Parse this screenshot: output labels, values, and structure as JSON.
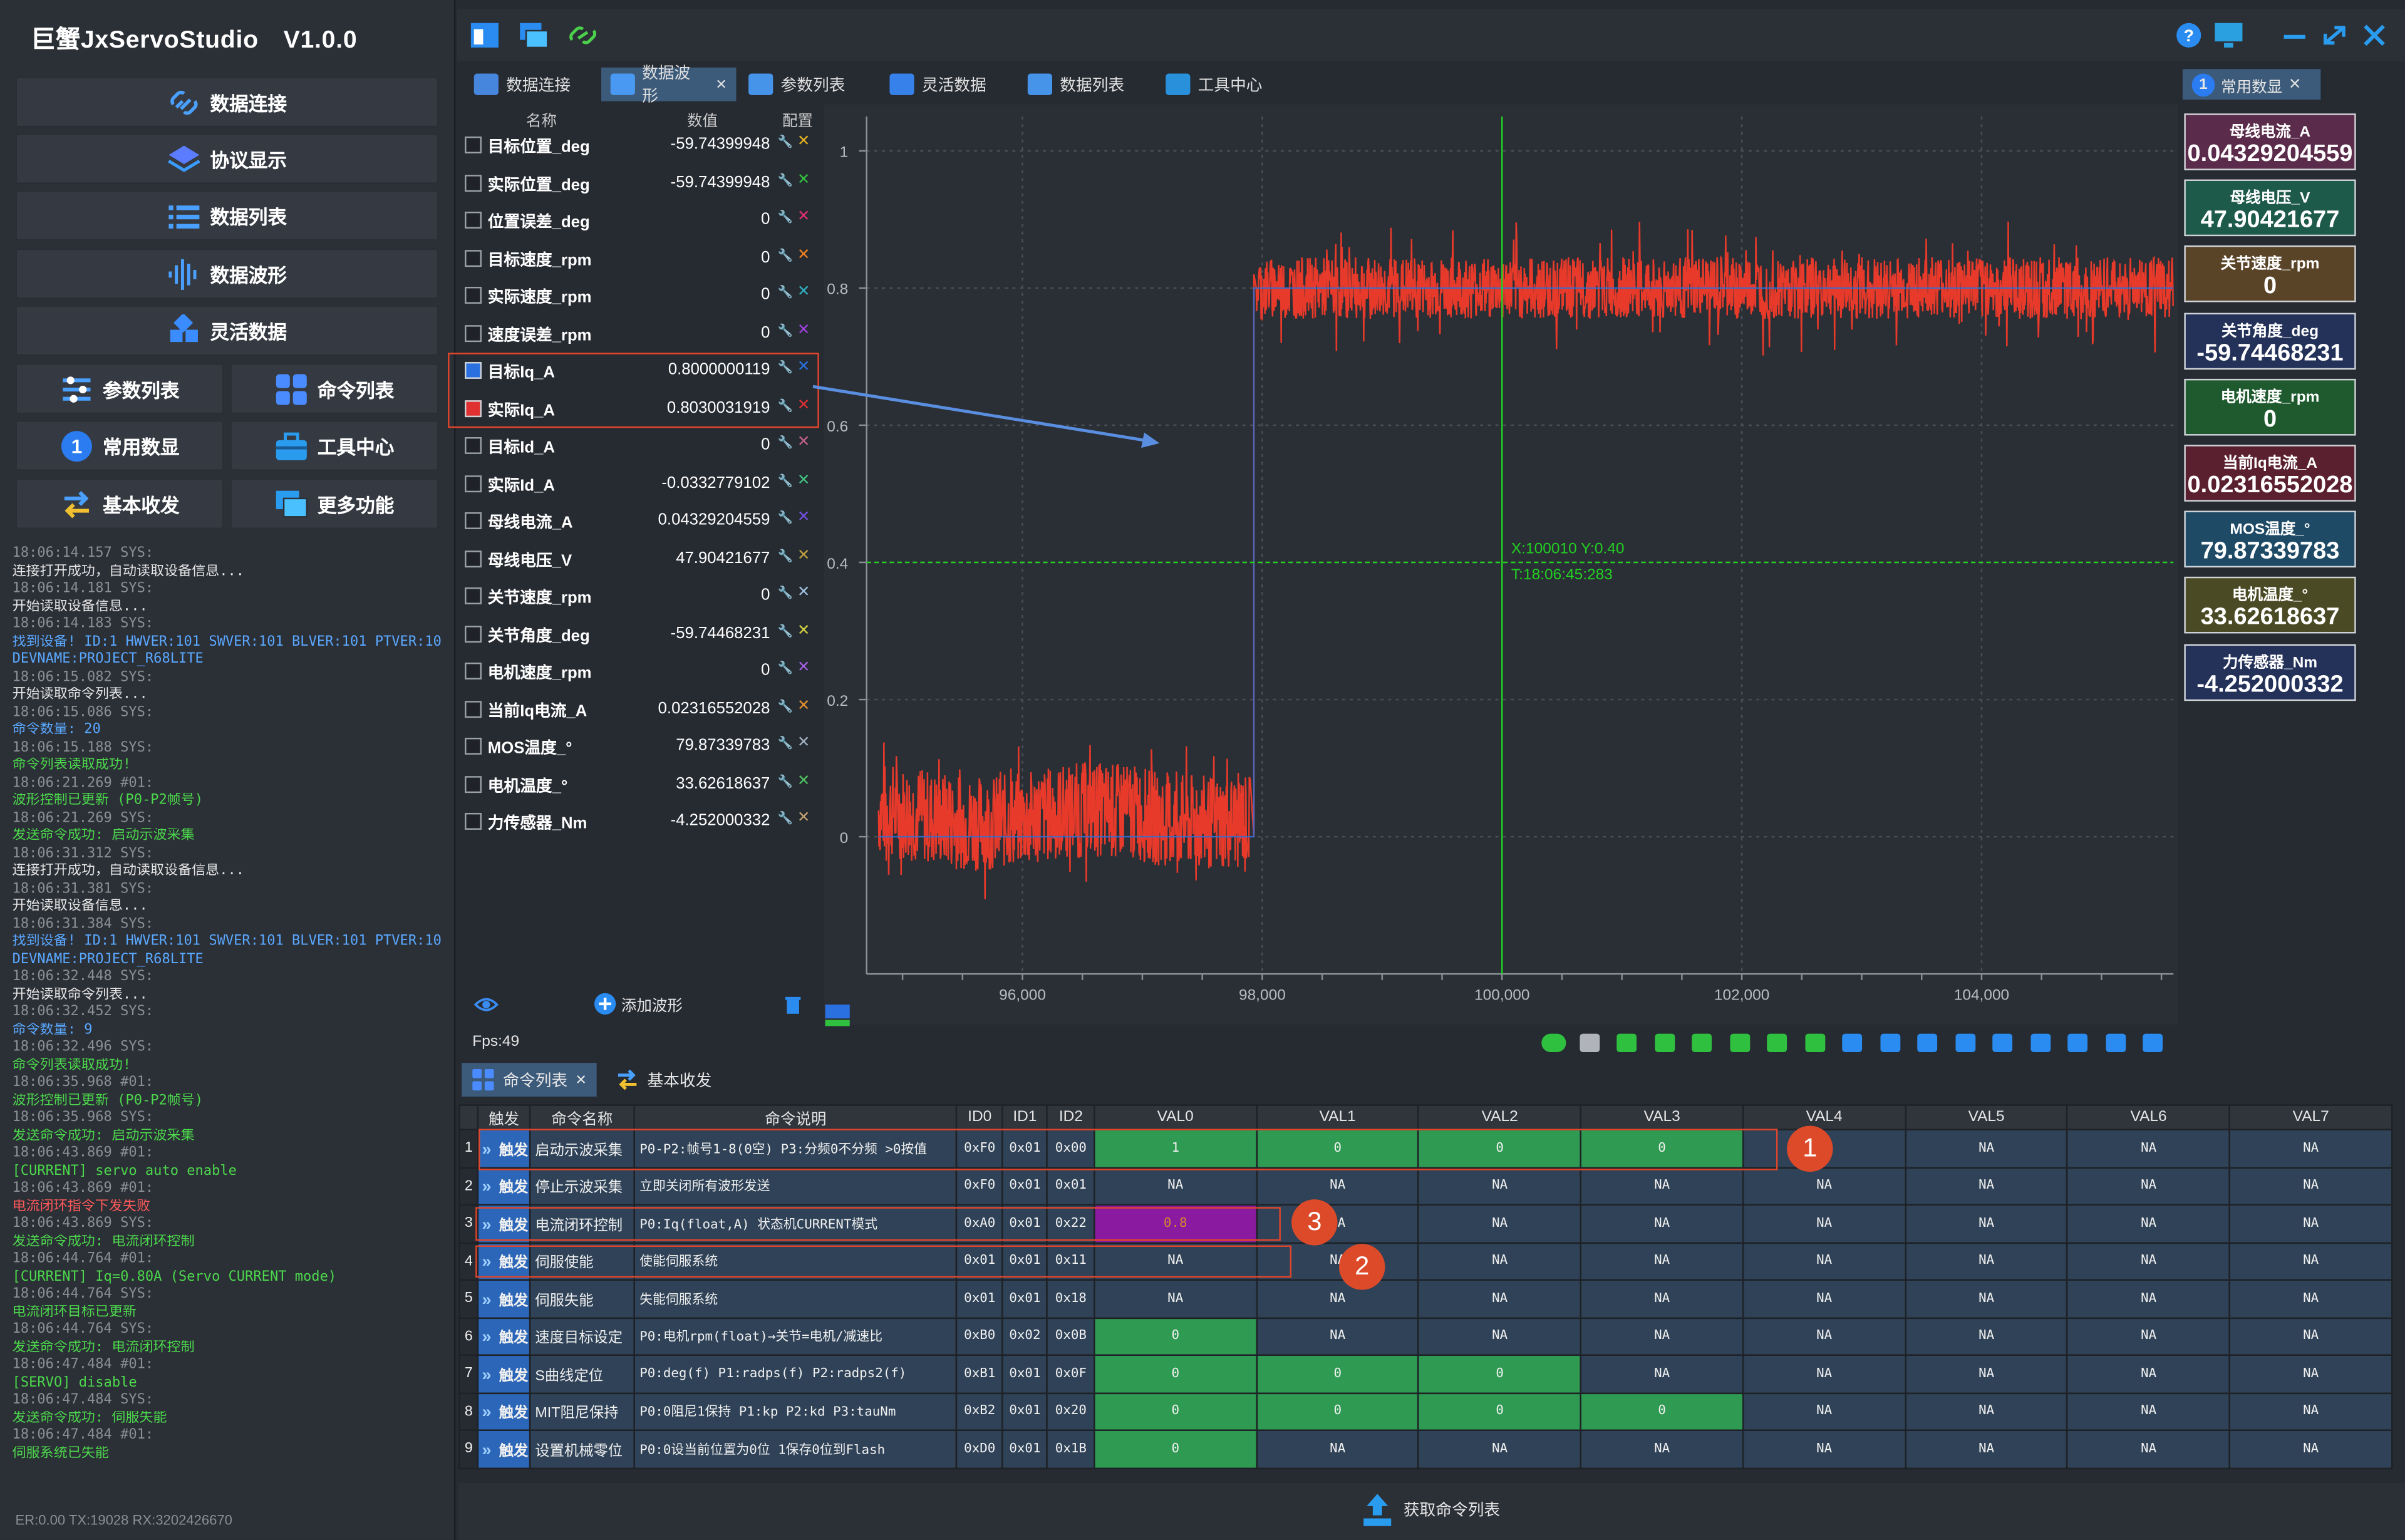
{
  "app": {
    "title": "巨蟹JxServoStudio　V1.0.0"
  },
  "nav": {
    "data_connect": "数据连接",
    "protocol_display": "协议显示",
    "data_list": "数据列表",
    "data_waveform": "数据波形",
    "flex_data": "灵活数据",
    "param_list": "参数列表",
    "cmd_list": "命令列表",
    "common_data": "常用数显",
    "tool_center": "工具中心",
    "basic_rxtx": "基本收发",
    "more_functions": "更多功能"
  },
  "log": [
    {
      "t": "18:06:14.157 SYS:",
      "c": "#8a8f96"
    },
    {
      "t": "连接打开成功，自动读取设备信息...",
      "c": "#e6e6e6"
    },
    {
      "t": "18:06:14.181 SYS:",
      "c": "#8a8f96"
    },
    {
      "t": "开始读取设备信息...",
      "c": "#e6e6e6"
    },
    {
      "t": "18:06:14.183 SYS:",
      "c": "#8a8f96"
    },
    {
      "t": "找到设备! ID:1 HWVER:101 SWVER:101 BLVER:101 PTVER:101",
      "c": "#5aa8ff"
    },
    {
      "t": "DEVNAME:PROJECT_R68LITE",
      "c": "#5aa8ff"
    },
    {
      "t": "18:06:15.082 SYS:",
      "c": "#8a8f96"
    },
    {
      "t": "开始读取命令列表...",
      "c": "#e6e6e6"
    },
    {
      "t": "18:06:15.086 SYS:",
      "c": "#8a8f96"
    },
    {
      "t": "命令数量: 20",
      "c": "#5aa8ff"
    },
    {
      "t": "18:06:15.188 SYS:",
      "c": "#8a8f96"
    },
    {
      "t": "命令列表读取成功!",
      "c": "#4cd84c"
    },
    {
      "t": "18:06:21.269 #01:",
      "c": "#8a8f96"
    },
    {
      "t": "波形控制已更新 (P0-P2帧号)",
      "c": "#4cd84c"
    },
    {
      "t": "18:06:21.269 SYS:",
      "c": "#8a8f96"
    },
    {
      "t": "发送命令成功: 启动示波采集",
      "c": "#4cd84c"
    },
    {
      "t": "18:06:31.312 SYS:",
      "c": "#8a8f96"
    },
    {
      "t": "连接打开成功，自动读取设备信息...",
      "c": "#e6e6e6"
    },
    {
      "t": "18:06:31.381 SYS:",
      "c": "#8a8f96"
    },
    {
      "t": "开始读取设备信息...",
      "c": "#e6e6e6"
    },
    {
      "t": "18:06:31.384 SYS:",
      "c": "#8a8f96"
    },
    {
      "t": "找到设备! ID:1 HWVER:101 SWVER:101 BLVER:101 PTVER:101",
      "c": "#5aa8ff"
    },
    {
      "t": "DEVNAME:PROJECT_R68LITE",
      "c": "#5aa8ff"
    },
    {
      "t": "18:06:32.448 SYS:",
      "c": "#8a8f96"
    },
    {
      "t": "开始读取命令列表...",
      "c": "#e6e6e6"
    },
    {
      "t": "18:06:32.452 SYS:",
      "c": "#8a8f96"
    },
    {
      "t": "命令数量: 9",
      "c": "#5aa8ff"
    },
    {
      "t": "18:06:32.496 SYS:",
      "c": "#8a8f96"
    },
    {
      "t": "命令列表读取成功!",
      "c": "#4cd84c"
    },
    {
      "t": "18:06:35.968 #01:",
      "c": "#8a8f96"
    },
    {
      "t": "波形控制已更新 (P0-P2帧号)",
      "c": "#4cd84c"
    },
    {
      "t": "18:06:35.968 SYS:",
      "c": "#8a8f96"
    },
    {
      "t": "发送命令成功: 启动示波采集",
      "c": "#4cd84c"
    },
    {
      "t": "18:06:43.869 #01:",
      "c": "#8a8f96"
    },
    {
      "t": "[CURRENT] servo auto enable",
      "c": "#4cd84c"
    },
    {
      "t": "18:06:43.869 #01:",
      "c": "#8a8f96"
    },
    {
      "t": "电流闭环指令下发失败",
      "c": "#ff5a5a"
    },
    {
      "t": "18:06:43.869 SYS:",
      "c": "#8a8f96"
    },
    {
      "t": "发送命令成功: 电流闭环控制",
      "c": "#4cd84c"
    },
    {
      "t": "18:06:44.764 #01:",
      "c": "#8a8f96"
    },
    {
      "t": "[CURRENT] Iq=0.80A (Servo CURRENT mode)",
      "c": "#4cd84c"
    },
    {
      "t": "18:06:44.764 SYS:",
      "c": "#8a8f96"
    },
    {
      "t": "电流闭环目标已更新",
      "c": "#4cd84c"
    },
    {
      "t": "18:06:44.764 SYS:",
      "c": "#8a8f96"
    },
    {
      "t": "发送命令成功: 电流闭环控制",
      "c": "#4cd84c"
    },
    {
      "t": "18:06:47.484 #01:",
      "c": "#8a8f96"
    },
    {
      "t": "[SERVO] disable",
      "c": "#4cd84c"
    },
    {
      "t": "18:06:47.484 SYS:",
      "c": "#8a8f96"
    },
    {
      "t": "发送命令成功: 伺服失能",
      "c": "#4cd84c"
    },
    {
      "t": "18:06:47.484 #01:",
      "c": "#8a8f96"
    },
    {
      "t": "伺服系统已失能",
      "c": "#4cd84c"
    }
  ],
  "status": "ER:0.00 TX:19028 RX:3202426670",
  "tabs": [
    "数据连接",
    "数据波形",
    "参数列表",
    "灵活数据",
    "数据列表",
    "工具中心"
  ],
  "siglist": {
    "headers": {
      "name": "名称",
      "value": "数值",
      "config": "配置"
    },
    "rows": [
      {
        "name": "目标位置_deg",
        "value": "-59.74399948",
        "checked": false,
        "color": "#e0b020"
      },
      {
        "name": "实际位置_deg",
        "value": "-59.74399948",
        "checked": false,
        "color": "#30c040"
      },
      {
        "name": "位置误差_deg",
        "value": "0",
        "checked": false,
        "color": "#e03070"
      },
      {
        "name": "目标速度_rpm",
        "value": "0",
        "checked": false,
        "color": "#f08020"
      },
      {
        "name": "实际速度_rpm",
        "value": "0",
        "checked": false,
        "color": "#30b0c0"
      },
      {
        "name": "速度误差_rpm",
        "value": "0",
        "checked": false,
        "color": "#a040e0"
      },
      {
        "name": "目标Iq_A",
        "value": "0.8000000119",
        "checked": true,
        "color": "#2a70e0"
      },
      {
        "name": "实际Iq_A",
        "value": "0.8030031919",
        "checked": true,
        "color": "#e03030"
      },
      {
        "name": "目标Id_A",
        "value": "0",
        "checked": false,
        "color": "#c0608a"
      },
      {
        "name": "实际Id_A",
        "value": "-0.0332779102",
        "checked": false,
        "color": "#40c080"
      },
      {
        "name": "母线电流_A",
        "value": "0.04329204559",
        "checked": false,
        "color": "#7050e0"
      },
      {
        "name": "母线电压_V",
        "value": "47.90421677",
        "checked": false,
        "color": "#c0a040"
      },
      {
        "name": "关节速度_rpm",
        "value": "0",
        "checked": false,
        "color": "#a0c0e0"
      },
      {
        "name": "关节角度_deg",
        "value": "-59.74468231",
        "checked": false,
        "color": "#d0d040"
      },
      {
        "name": "电机速度_rpm",
        "value": "0",
        "checked": false,
        "color": "#a060e0"
      },
      {
        "name": "当前Iq电流_A",
        "value": "0.02316552028",
        "checked": false,
        "color": "#e09030"
      },
      {
        "name": "MOS温度_°",
        "value": "79.87339783",
        "checked": false,
        "color": "#a0b0c0"
      },
      {
        "name": "电机温度_°",
        "value": "33.62618637",
        "checked": false,
        "color": "#50c060"
      },
      {
        "name": "力传感器_Nm",
        "value": "-4.252000332",
        "checked": false,
        "color": "#c0a070"
      }
    ],
    "add_waveform": "添加波形",
    "fps": "Fps:49"
  },
  "chart_data": {
    "type": "line",
    "x_ticks": [
      "96,000",
      "98,000",
      "100,000",
      "102,000",
      "104,000"
    ],
    "y_ticks": [
      "0",
      "0.2",
      "0.4",
      "0.6",
      "0.8",
      "1"
    ],
    "xlim": [
      94700,
      105600
    ],
    "ylim": [
      -0.2,
      1.05
    ],
    "series": [
      {
        "color": "#e83a2a",
        "segments": [
          {
            "x0": 94800,
            "x1": 97900,
            "y": 0.03,
            "noise": 0.07
          },
          {
            "x0": 97950,
            "x1": 105600,
            "y": 0.8,
            "noise": 0.045
          }
        ],
        "step_x": 97930
      },
      {
        "color": "#2a70e0",
        "segments": [
          {
            "x0": 94800,
            "x1": 97930,
            "y": 0.0
          },
          {
            "x0": 97930,
            "x1": 105600,
            "y": 0.8
          }
        ]
      }
    ],
    "cursor": {
      "x": 100000,
      "y": 0.4,
      "label1": "X:100010 Y:0.40",
      "label2": "T:18:06:45:283"
    }
  },
  "right_tab": {
    "num": "1",
    "label": "常用数显"
  },
  "cards": [
    {
      "title": "母线电流_A",
      "value": "0.04329204559",
      "bg": "#5a2b4a"
    },
    {
      "title": "母线电压_V",
      "value": "47.90421677",
      "bg": "#1e5a4a"
    },
    {
      "title": "关节速度_rpm",
      "value": "0",
      "bg": "#5a4428"
    },
    {
      "title": "关节角度_deg",
      "value": "-59.74468231",
      "bg": "#24325a"
    },
    {
      "title": "电机速度_rpm",
      "value": "0",
      "bg": "#1e5a2e"
    },
    {
      "title": "当前Iq电流_A",
      "value": "0.02316552028",
      "bg": "#5a2030"
    },
    {
      "title": "MOS温度_°",
      "value": "79.87339783",
      "bg": "#1e4a66"
    },
    {
      "title": "电机温度_°",
      "value": "33.62618637",
      "bg": "#4a4a24"
    },
    {
      "title": "力传感器_Nm",
      "value": "-4.252000332",
      "bg": "#24325a"
    }
  ],
  "bottom_tabs": [
    "命令列表",
    "基本收发"
  ],
  "table": {
    "headers": [
      "",
      "触发",
      "命令名称",
      "命令说明",
      "ID0",
      "ID1",
      "ID2",
      "VAL0",
      "VAL1",
      "VAL2",
      "VAL3",
      "VAL4",
      "VAL5",
      "VAL6",
      "VAL7"
    ],
    "rows": [
      {
        "i": "1",
        "trig": "触发",
        "name": "启动示波采集",
        "desc": "P0-P2:帧号1-8(0空) P3:分频0不分频 >0按值",
        "id0": "0xF0",
        "id1": "0x01",
        "id2": "0x00",
        "vals": [
          "1",
          "0",
          "0",
          "0",
          "NA",
          "NA",
          "NA",
          "NA"
        ],
        "g": [
          1,
          1,
          1,
          1,
          0,
          0,
          0,
          0
        ]
      },
      {
        "i": "2",
        "trig": "触发",
        "name": "停止示波采集",
        "desc": "立即关闭所有波形发送",
        "id0": "0xF0",
        "id1": "0x01",
        "id2": "0x01",
        "vals": [
          "NA",
          "NA",
          "NA",
          "NA",
          "NA",
          "NA",
          "NA",
          "NA"
        ],
        "g": [
          0,
          0,
          0,
          0,
          0,
          0,
          0,
          0
        ]
      },
      {
        "i": "3",
        "trig": "触发",
        "name": "电流闭环控制",
        "desc": "P0:Iq(float,A) 状态机CURRENT模式",
        "id0": "0xA0",
        "id1": "0x01",
        "id2": "0x22",
        "vals": [
          "0.8",
          "NA",
          "NA",
          "NA",
          "NA",
          "NA",
          "NA",
          "NA"
        ],
        "g": [
          2,
          0,
          0,
          0,
          0,
          0,
          0,
          0
        ]
      },
      {
        "i": "4",
        "trig": "触发",
        "name": "伺服使能",
        "desc": "使能伺服系统",
        "id0": "0x01",
        "id1": "0x01",
        "id2": "0x11",
        "vals": [
          "NA",
          "NA",
          "NA",
          "NA",
          "NA",
          "NA",
          "NA",
          "NA"
        ],
        "g": [
          0,
          0,
          0,
          0,
          0,
          0,
          0,
          0
        ]
      },
      {
        "i": "5",
        "trig": "触发",
        "name": "伺服失能",
        "desc": "失能伺服系统",
        "id0": "0x01",
        "id1": "0x01",
        "id2": "0x18",
        "vals": [
          "NA",
          "NA",
          "NA",
          "NA",
          "NA",
          "NA",
          "NA",
          "NA"
        ],
        "g": [
          0,
          0,
          0,
          0,
          0,
          0,
          0,
          0
        ]
      },
      {
        "i": "6",
        "trig": "触发",
        "name": "速度目标设定",
        "desc": "P0:电机rpm(float)→关节=电机/减速比",
        "id0": "0xB0",
        "id1": "0x02",
        "id2": "0x0B",
        "vals": [
          "0",
          "NA",
          "NA",
          "NA",
          "NA",
          "NA",
          "NA",
          "NA"
        ],
        "g": [
          1,
          0,
          0,
          0,
          0,
          0,
          0,
          0
        ]
      },
      {
        "i": "7",
        "trig": "触发",
        "name": "S曲线定位",
        "desc": "P0:deg(f) P1:radps(f) P2:radps2(f)",
        "id0": "0xB1",
        "id1": "0x01",
        "id2": "0x0F",
        "vals": [
          "0",
          "0",
          "0",
          "NA",
          "NA",
          "NA",
          "NA",
          "NA"
        ],
        "g": [
          1,
          1,
          1,
          0,
          0,
          0,
          0,
          0
        ]
      },
      {
        "i": "8",
        "trig": "触发",
        "name": "MIT阻尼保持",
        "desc": "P0:0阻尼1保持 P1:kp P2:kd P3:tauNm",
        "id0": "0xB2",
        "id1": "0x01",
        "id2": "0x20",
        "vals": [
          "0",
          "0",
          "0",
          "0",
          "NA",
          "NA",
          "NA",
          "NA"
        ],
        "g": [
          1,
          1,
          1,
          1,
          0,
          0,
          0,
          0
        ]
      },
      {
        "i": "9",
        "trig": "触发",
        "name": "设置机械零位",
        "desc": "P0:0设当前位置为0位 1保存0位到Flash",
        "id0": "0xD0",
        "id1": "0x01",
        "id2": "0x1B",
        "vals": [
          "0",
          "NA",
          "NA",
          "NA",
          "NA",
          "NA",
          "NA",
          "NA"
        ],
        "g": [
          1,
          0,
          0,
          0,
          0,
          0,
          0,
          0
        ]
      }
    ]
  },
  "callouts": [
    "1",
    "3",
    "2"
  ],
  "get_cmd_list": "获取命令列表"
}
